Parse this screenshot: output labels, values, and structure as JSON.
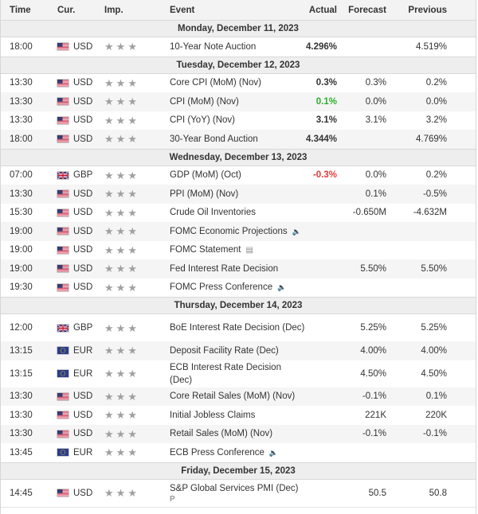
{
  "columns": {
    "time": "Time",
    "currency": "Cur.",
    "importance": "Imp.",
    "event": "Event",
    "actual": "Actual",
    "forecast": "Forecast",
    "previous": "Previous"
  },
  "colors": {
    "positive": "#2bb02b",
    "negative": "#e33b3b",
    "star": "#a0a0a0"
  },
  "items": [
    {
      "type": "day",
      "label": "Monday, December 11, 2023"
    },
    {
      "type": "event",
      "time": "18:00",
      "flag": "us-flag-icon",
      "currency": "USD",
      "event": "10-Year Note Auction",
      "actual": "4.296%",
      "actual_color": "",
      "forecast": "",
      "previous": "4.519%",
      "icon": ""
    },
    {
      "type": "day",
      "label": "Tuesday, December 12, 2023"
    },
    {
      "type": "event",
      "time": "13:30",
      "flag": "us-flag-icon",
      "currency": "USD",
      "event": "Core CPI (MoM) (Nov)",
      "actual": "0.3%",
      "actual_color": "",
      "forecast": "0.3%",
      "previous": "0.2%",
      "icon": ""
    },
    {
      "type": "event",
      "time": "13:30",
      "flag": "us-flag-icon",
      "currency": "USD",
      "event": "CPI (MoM) (Nov)",
      "actual": "0.1%",
      "actual_color": "positive",
      "forecast": "0.0%",
      "previous": "0.0%",
      "icon": ""
    },
    {
      "type": "event",
      "time": "13:30",
      "flag": "us-flag-icon",
      "currency": "USD",
      "event": "CPI (YoY) (Nov)",
      "actual": "3.1%",
      "actual_color": "",
      "forecast": "3.1%",
      "previous": "3.2%",
      "icon": ""
    },
    {
      "type": "event",
      "time": "18:00",
      "flag": "us-flag-icon",
      "currency": "USD",
      "event": "30-Year Bond Auction",
      "actual": "4.344%",
      "actual_color": "",
      "forecast": "",
      "previous": "4.769%",
      "icon": ""
    },
    {
      "type": "day",
      "label": "Wednesday, December 13, 2023"
    },
    {
      "type": "event",
      "time": "07:00",
      "flag": "uk-flag-icon",
      "currency": "GBP",
      "event": "GDP (MoM) (Oct)",
      "actual": "-0.3%",
      "actual_color": "negative",
      "forecast": "0.0%",
      "previous": "0.2%",
      "icon": ""
    },
    {
      "type": "event",
      "time": "13:30",
      "flag": "us-flag-icon",
      "currency": "USD",
      "event": "PPI (MoM) (Nov)",
      "actual": "",
      "actual_color": "",
      "forecast": "0.1%",
      "previous": "-0.5%",
      "icon": ""
    },
    {
      "type": "event",
      "time": "15:30",
      "flag": "us-flag-icon",
      "currency": "USD",
      "event": "Crude Oil Inventories",
      "actual": "",
      "actual_color": "",
      "forecast": "-0.650M",
      "previous": "-4.632M",
      "icon": ""
    },
    {
      "type": "event",
      "time": "19:00",
      "flag": "us-flag-icon",
      "currency": "USD",
      "event": "FOMC Economic Projections",
      "actual": "",
      "actual_color": "",
      "forecast": "",
      "previous": "",
      "icon": "speaker-icon"
    },
    {
      "type": "event",
      "time": "19:00",
      "flag": "us-flag-icon",
      "currency": "USD",
      "event": "FOMC Statement",
      "actual": "",
      "actual_color": "",
      "forecast": "",
      "previous": "",
      "icon": "document-icon"
    },
    {
      "type": "event",
      "time": "19:00",
      "flag": "us-flag-icon",
      "currency": "USD",
      "event": "Fed Interest Rate Decision",
      "actual": "",
      "actual_color": "",
      "forecast": "5.50%",
      "previous": "5.50%",
      "icon": ""
    },
    {
      "type": "event",
      "time": "19:30",
      "flag": "us-flag-icon",
      "currency": "USD",
      "event": "FOMC Press Conference",
      "actual": "",
      "actual_color": "",
      "forecast": "",
      "previous": "",
      "icon": "speaker-icon"
    },
    {
      "type": "day",
      "label": "Thursday, December 14, 2023"
    },
    {
      "type": "event",
      "time": "12:00",
      "flag": "uk-flag-icon",
      "currency": "GBP",
      "event": "BoE Interest Rate Decision (Dec)",
      "actual": "",
      "actual_color": "",
      "forecast": "5.25%",
      "previous": "5.25%",
      "icon": ""
    },
    {
      "type": "event",
      "time": "13:15",
      "flag": "eu-flag-icon",
      "currency": "EUR",
      "event": "Deposit Facility Rate (Dec)",
      "actual": "",
      "actual_color": "",
      "forecast": "4.00%",
      "previous": "4.00%",
      "icon": ""
    },
    {
      "type": "event",
      "time": "13:15",
      "flag": "eu-flag-icon",
      "currency": "EUR",
      "event": "ECB Interest Rate Decision (Dec)",
      "actual": "",
      "actual_color": "",
      "forecast": "4.50%",
      "previous": "4.50%",
      "icon": ""
    },
    {
      "type": "event",
      "time": "13:30",
      "flag": "us-flag-icon",
      "currency": "USD",
      "event": "Core Retail Sales (MoM) (Nov)",
      "actual": "",
      "actual_color": "",
      "forecast": "-0.1%",
      "previous": "0.1%",
      "icon": ""
    },
    {
      "type": "event",
      "time": "13:30",
      "flag": "us-flag-icon",
      "currency": "USD",
      "event": "Initial Jobless Claims",
      "actual": "",
      "actual_color": "",
      "forecast": "221K",
      "previous": "220K",
      "icon": ""
    },
    {
      "type": "event",
      "time": "13:30",
      "flag": "us-flag-icon",
      "currency": "USD",
      "event": "Retail Sales (MoM) (Nov)",
      "actual": "",
      "actual_color": "",
      "forecast": "-0.1%",
      "previous": "-0.1%",
      "icon": ""
    },
    {
      "type": "event",
      "time": "13:45",
      "flag": "eu-flag-icon",
      "currency": "EUR",
      "event": "ECB Press Conference",
      "actual": "",
      "actual_color": "",
      "forecast": "",
      "previous": "",
      "icon": "speaker-icon"
    },
    {
      "type": "day",
      "label": "Friday, December 15, 2023"
    },
    {
      "type": "event",
      "time": "14:45",
      "flag": "us-flag-icon",
      "currency": "USD",
      "event": "S&P Global Services PMI (Dec)",
      "actual": "",
      "actual_color": "",
      "forecast": "50.5",
      "previous": "50.8",
      "icon": "",
      "preliminary": "P"
    }
  ]
}
